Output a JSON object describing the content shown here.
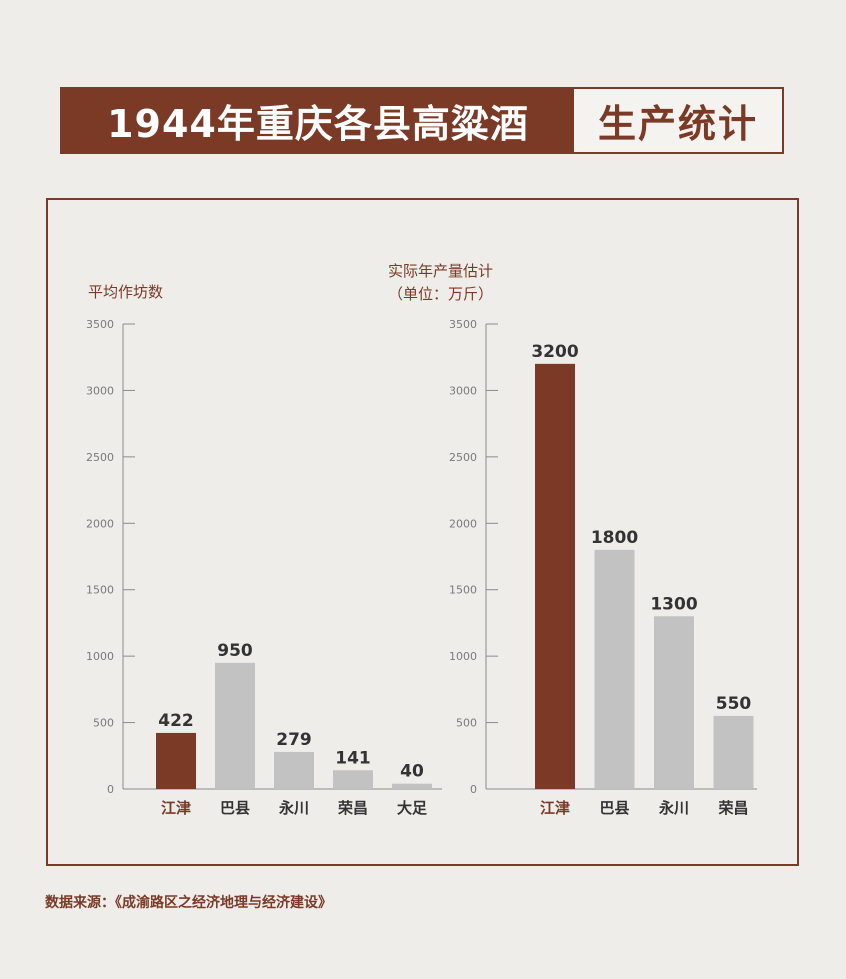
{
  "title": {
    "main": "1944年重庆各县高粱酒",
    "sub": "生产统计"
  },
  "source": "数据来源：《成渝路区之经济地理与经济建设》",
  "colors": {
    "accent": "#7a3a26",
    "bar": "#c2c2c2",
    "background": "#efedea"
  },
  "chart_data": [
    {
      "type": "bar",
      "ylabel": "平均作坊数",
      "categories": [
        "江津",
        "巴县",
        "永川",
        "荣昌",
        "大足"
      ],
      "values": [
        422,
        950,
        279,
        141,
        40
      ],
      "data_labels": [
        "422",
        "950",
        "279",
        "141",
        "40"
      ],
      "highlight_index": 0,
      "ylim": [
        0,
        3500
      ],
      "yticks": [
        "0",
        "500",
        "1000",
        "1500",
        "2000",
        "2500",
        "3000",
        "3500"
      ],
      "grid": false
    },
    {
      "type": "bar",
      "ylabel": [
        "实际年产量估计",
        "（单位：万斤）"
      ],
      "categories": [
        "江津",
        "巴县",
        "永川",
        "荣昌"
      ],
      "values": [
        3200,
        1800,
        1300,
        550
      ],
      "data_labels": [
        "3200",
        "1800",
        "1300",
        "550"
      ],
      "highlight_index": 0,
      "ylim": [
        0,
        3500
      ],
      "yticks": [
        "0",
        "500",
        "1000",
        "1500",
        "2000",
        "2500",
        "3000",
        "3500"
      ],
      "grid": false
    }
  ]
}
